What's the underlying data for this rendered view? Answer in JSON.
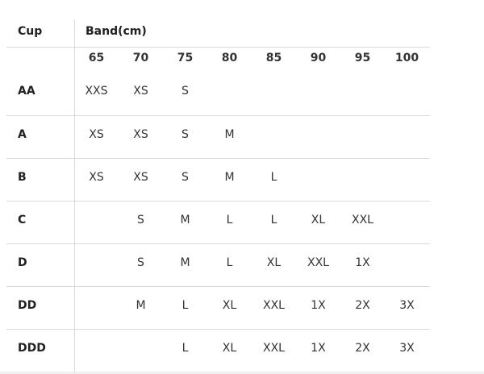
{
  "header": {
    "cup_label": "Cup",
    "band_label": "Band(cm)"
  },
  "bands": [
    "65",
    "70",
    "75",
    "80",
    "85",
    "90",
    "95",
    "100"
  ],
  "rows": [
    {
      "cup": "AA",
      "sizes": [
        "XXS",
        "XS",
        "S",
        "",
        "",
        "",
        "",
        ""
      ]
    },
    {
      "cup": "A",
      "sizes": [
        "XS",
        "XS",
        "S",
        "M",
        "",
        "",
        "",
        ""
      ]
    },
    {
      "cup": "B",
      "sizes": [
        "XS",
        "XS",
        "S",
        "M",
        "L",
        "",
        "",
        ""
      ]
    },
    {
      "cup": "C",
      "sizes": [
        "",
        "S",
        "M",
        "L",
        "L",
        "XL",
        "XXL",
        ""
      ]
    },
    {
      "cup": "D",
      "sizes": [
        "",
        "S",
        "M",
        "L",
        "XL",
        "XXL",
        "1X",
        ""
      ]
    },
    {
      "cup": "DD",
      "sizes": [
        "",
        "M",
        "L",
        "XL",
        "XXL",
        "1X",
        "2X",
        "3X"
      ]
    },
    {
      "cup": "DDD",
      "sizes": [
        "",
        "",
        "L",
        "XL",
        "XXL",
        "1X",
        "2X",
        "3X"
      ]
    }
  ]
}
